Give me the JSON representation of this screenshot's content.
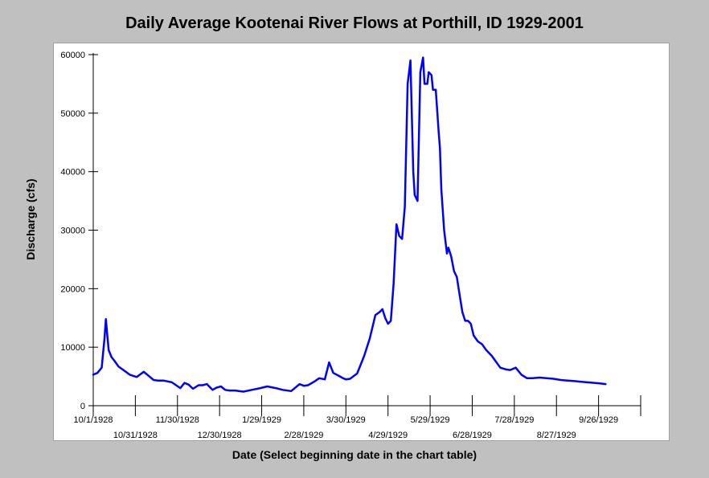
{
  "chart_data": {
    "type": "line",
    "title": "Daily Average Kootenai River Flows at Porthill, ID 1929-2001",
    "xlabel": "Date (Select beginning date in the chart table)",
    "ylabel": "Discharge (cfs)",
    "ylim": [
      0,
      60000
    ],
    "yticks": [
      0,
      10000,
      20000,
      30000,
      40000,
      50000,
      60000
    ],
    "ytick_labels": [
      "0",
      "10000",
      "20000",
      "30000",
      "40000",
      "50000",
      "60000"
    ],
    "xlim": [
      "1928-10-01",
      "1929-10-26"
    ],
    "xticks": [
      {
        "date": "1928-10-01",
        "label": "10/1/1928"
      },
      {
        "date": "1928-10-31",
        "label": "10/31/1928"
      },
      {
        "date": "1928-11-30",
        "label": "11/30/1928"
      },
      {
        "date": "1928-12-30",
        "label": "12/30/1928"
      },
      {
        "date": "1929-01-29",
        "label": "1/29/1929"
      },
      {
        "date": "1929-02-28",
        "label": "2/28/1929"
      },
      {
        "date": "1929-03-30",
        "label": "3/30/1929"
      },
      {
        "date": "1929-04-29",
        "label": "4/29/1929"
      },
      {
        "date": "1929-05-29",
        "label": "5/29/1929"
      },
      {
        "date": "1929-06-28",
        "label": "6/28/1929"
      },
      {
        "date": "1929-07-28",
        "label": "7/28/1929"
      },
      {
        "date": "1929-08-27",
        "label": "8/27/1929"
      },
      {
        "date": "1929-09-26",
        "label": "9/26/1929"
      },
      {
        "date": "1929-10-26",
        "label": ""
      }
    ],
    "grid": false,
    "legend": "none",
    "color": "#0000ff",
    "series": [
      {
        "x": [
          "1928-10-01",
          "1928-10-04",
          "1928-10-07",
          "1928-10-09",
          "1928-10-10",
          "1928-10-11",
          "1928-10-12",
          "1928-10-14",
          "1928-10-16",
          "1928-10-19",
          "1928-10-23",
          "1928-10-27",
          "1928-11-01",
          "1928-11-06",
          "1928-11-10",
          "1928-11-13",
          "1928-11-16",
          "1928-11-20",
          "1928-11-26",
          "1928-12-02",
          "1928-12-05",
          "1928-12-08",
          "1928-12-11",
          "1928-12-15",
          "1928-12-18",
          "1928-12-21",
          "1928-12-25",
          "1928-12-28",
          "1928-12-31",
          "1929-01-03",
          "1929-01-06",
          "1929-01-10",
          "1929-01-16",
          "1929-01-22",
          "1929-01-28",
          "1929-02-02",
          "1929-02-08",
          "1929-02-13",
          "1929-02-19",
          "1929-02-25",
          "1929-02-28",
          "1929-03-03",
          "1929-03-08",
          "1929-03-11",
          "1929-03-15",
          "1929-03-18",
          "1929-03-21",
          "1929-03-25",
          "1929-03-28",
          "1929-03-30",
          "1929-04-02",
          "1929-04-07",
          "1929-04-12",
          "1929-04-16",
          "1929-04-20",
          "1929-04-23",
          "1929-04-25",
          "1929-04-27",
          "1929-04-29",
          "1929-05-01",
          "1929-05-03",
          "1929-05-05",
          "1929-05-07",
          "1929-05-09",
          "1929-05-11",
          "1929-05-13",
          "1929-05-15",
          "1929-05-17",
          "1929-05-18",
          "1929-05-20",
          "1929-05-22",
          "1929-05-24",
          "1929-05-25",
          "1929-05-27",
          "1929-05-28",
          "1929-05-30",
          "1929-05-31",
          "1929-06-01",
          "1929-06-02",
          "1929-06-04",
          "1929-06-05",
          "1929-06-06",
          "1929-06-08",
          "1929-06-10",
          "1929-06-11",
          "1929-06-13",
          "1929-06-15",
          "1929-06-17",
          "1929-06-19",
          "1929-06-21",
          "1929-06-23",
          "1929-06-25",
          "1929-06-27",
          "1929-06-29",
          "1929-07-02",
          "1929-07-05",
          "1929-07-08",
          "1929-07-12",
          "1929-07-15",
          "1929-07-18",
          "1929-07-22",
          "1929-07-25",
          "1929-07-29",
          "1929-08-02",
          "1929-08-06",
          "1929-08-10",
          "1929-08-15",
          "1929-08-20",
          "1929-08-25",
          "1929-08-30",
          "1929-09-04",
          "1929-09-09",
          "1929-09-13",
          "1929-09-18",
          "1929-09-23",
          "1929-09-27",
          "1929-10-01"
        ],
        "y": [
          5300,
          5600,
          6500,
          11500,
          14800,
          12000,
          9500,
          8300,
          7700,
          6700,
          6000,
          5300,
          4900,
          5800,
          5000,
          4400,
          4300,
          4300,
          4000,
          3000,
          3900,
          3600,
          2900,
          3500,
          3500,
          3700,
          2700,
          3100,
          3300,
          2700,
          2600,
          2600,
          2400,
          2700,
          3000,
          3300,
          3000,
          2700,
          2500,
          3700,
          3400,
          3500,
          4200,
          4700,
          4500,
          7400,
          5600,
          5100,
          4700,
          4500,
          4600,
          5500,
          8500,
          11500,
          15500,
          16000,
          16500,
          15000,
          14000,
          14500,
          21000,
          31000,
          29000,
          28500,
          34000,
          55000,
          59000,
          40000,
          36000,
          35000,
          57000,
          59500,
          55000,
          55000,
          57000,
          56500,
          54000,
          54000,
          54000,
          47000,
          44000,
          37000,
          30000,
          26000,
          27000,
          25500,
          23000,
          22000,
          19000,
          16000,
          14500,
          14500,
          14000,
          12000,
          11000,
          10500,
          9500,
          8500,
          7500,
          6500,
          6200,
          6100,
          6500,
          5300,
          4700,
          4700,
          4800,
          4700,
          4600,
          4400,
          4300,
          4200,
          4100,
          4000,
          3900,
          3800,
          3700
        ]
      }
    ]
  }
}
